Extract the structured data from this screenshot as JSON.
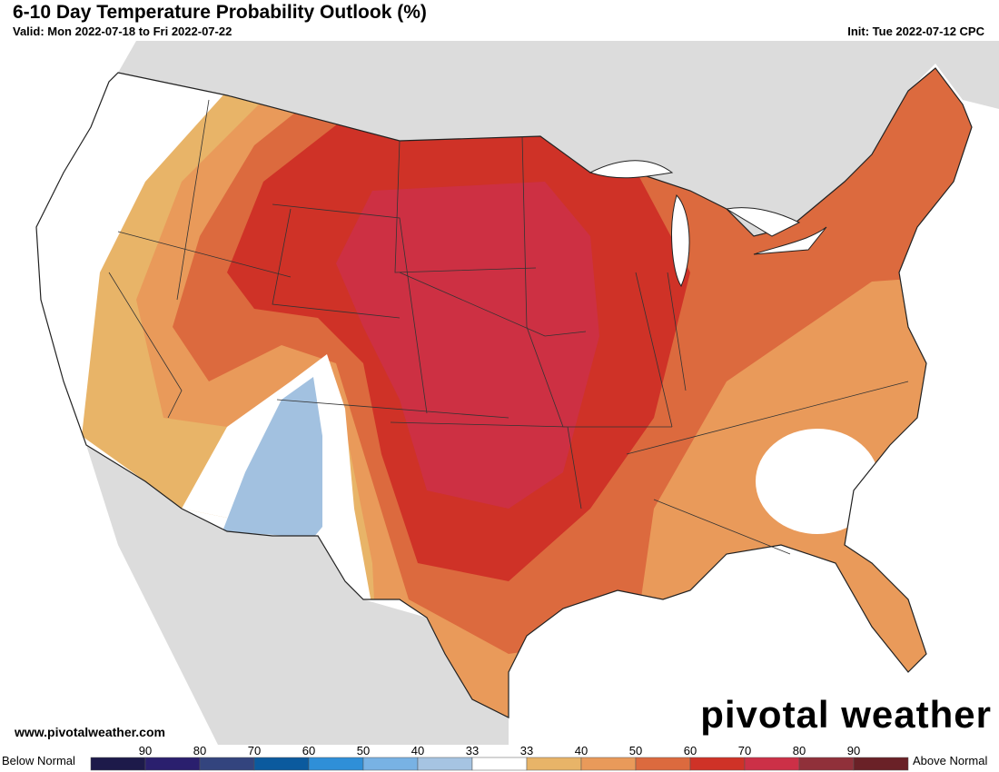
{
  "header": {
    "title": "6-10 Day Temperature Probability Outlook (%)",
    "valid": "Valid: Mon 2022-07-18 to Fri 2022-07-22",
    "init": "Init: Tue 2022-07-12 CPC"
  },
  "footer": {
    "url": "www.pivotalweather.com",
    "logo": "pivotal weather"
  },
  "legend": {
    "low_label": "Below Normal",
    "high_label": "Above Normal",
    "ticks": [
      "90",
      "80",
      "70",
      "60",
      "50",
      "40",
      "33",
      "33",
      "40",
      "50",
      "60",
      "70",
      "80",
      "90"
    ],
    "colors": [
      "#1d1a4a",
      "#2a1f6e",
      "#33447e",
      "#0b5a9e",
      "#2f8fd8",
      "#78b2e4",
      "#a6c4e2",
      "#ffffff",
      "#e8b468",
      "#e99a5a",
      "#dc6a3e",
      "#cf3227",
      "#cc3047",
      "#90303a",
      "#6a2127"
    ]
  }
}
